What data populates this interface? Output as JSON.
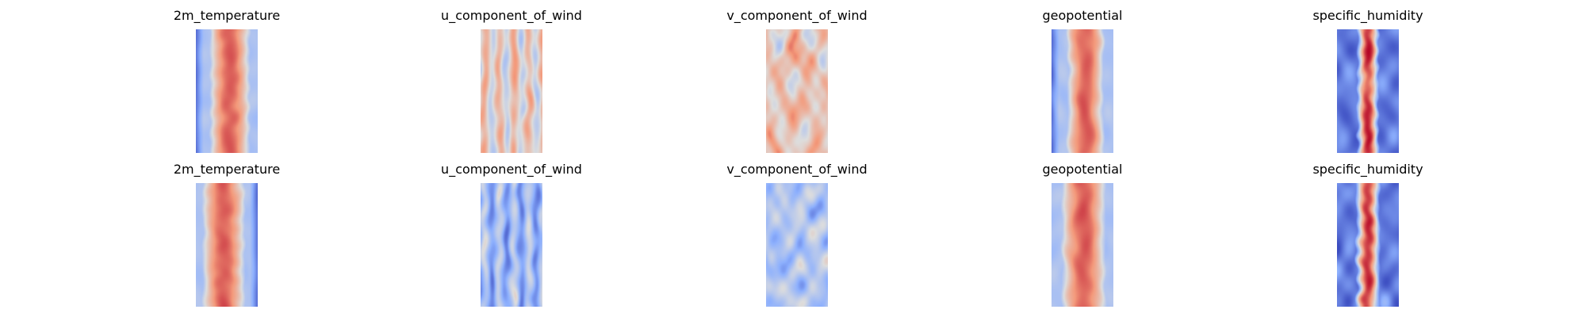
{
  "chart_data": {
    "type": "heatmap",
    "colormap": "coolwarm",
    "grid": false,
    "axes_visible": false,
    "rows": 2,
    "columns": 5,
    "panels": [
      {
        "title": "2m_temperature",
        "pattern": "band",
        "warm_center": 0.55,
        "band_width": 0.33,
        "texture": 0.08,
        "cold_left": true,
        "cold_right": false
      },
      {
        "title": "u_component_of_wind",
        "pattern": "streaks",
        "bias": 0.05,
        "texture": 0.55
      },
      {
        "title": "v_component_of_wind",
        "pattern": "eddies",
        "bias": 0.1,
        "texture": 0.6
      },
      {
        "title": "geopotential",
        "pattern": "band",
        "warm_center": 0.55,
        "band_width": 0.3,
        "texture": 0.12,
        "cold_left": true,
        "cold_right": false
      },
      {
        "title": "specific_humidity",
        "pattern": "narrow_band",
        "warm_center": 0.5,
        "band_width": 0.18,
        "texture": 0.25
      },
      {
        "title": "2m_temperature",
        "pattern": "band",
        "warm_center": 0.45,
        "band_width": 0.35,
        "texture": 0.08,
        "cold_left": false,
        "cold_right": true
      },
      {
        "title": "u_component_of_wind",
        "pattern": "streaks",
        "bias": -0.2,
        "texture": 0.45
      },
      {
        "title": "v_component_of_wind",
        "pattern": "eddies",
        "bias": -0.15,
        "texture": 0.45
      },
      {
        "title": "geopotential",
        "pattern": "band",
        "warm_center": 0.52,
        "band_width": 0.36,
        "texture": 0.14,
        "cold_left": false,
        "cold_right": false
      },
      {
        "title": "specific_humidity",
        "pattern": "narrow_band",
        "warm_center": 0.5,
        "band_width": 0.2,
        "texture": 0.28
      }
    ]
  }
}
